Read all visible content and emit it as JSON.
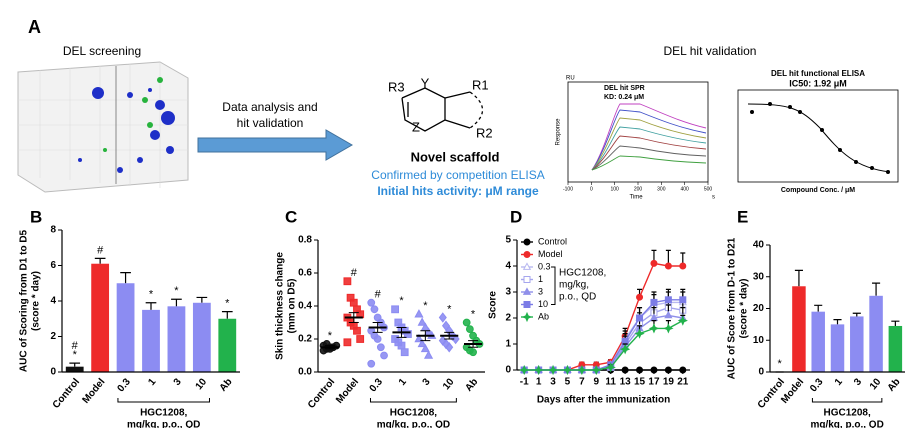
{
  "panel_a": {
    "label": "A",
    "screening_title": "DEL screening",
    "arrow_text": [
      "Data analysis and",
      "hit validation"
    ],
    "atoms": [
      "R3",
      "Y",
      "R1",
      "Z",
      "R2"
    ],
    "scaffold_title": "Novel scaffold",
    "scaffold_lines": [
      "Confirmed by competition ELISA",
      "Initial hits activity: μM range"
    ],
    "validation_title": "DEL hit validation",
    "spr": {
      "title": "DEL hit SPR",
      "kd": "KD: 0.24 μM",
      "unit": "RU",
      "ylabel": "Response",
      "xlabel": "Time",
      "xunit": "s",
      "xlim": [
        -100,
        500
      ],
      "xticks": [
        -100,
        0,
        100,
        200,
        300,
        400,
        500
      ]
    },
    "elisa": {
      "title": "DEL hit functional ELISA",
      "ic50": "IC50: 1.92 μM",
      "xlabel": "Compound Conc. / μM"
    }
  },
  "chart_data": [
    {
      "type": "bar",
      "label": "B",
      "ylabel": [
        "AUC of Scoring from D1 to D5",
        "(score * day)"
      ],
      "categories": [
        "Control",
        "Model",
        "0.3",
        "1",
        "3",
        "10",
        "Ab"
      ],
      "values": [
        0.3,
        6.1,
        5.0,
        3.5,
        3.7,
        3.9,
        3.0
      ],
      "errors": [
        0.2,
        0.3,
        0.6,
        0.4,
        0.4,
        0.3,
        0.4
      ],
      "colors": [
        "#111111",
        "#ee2a2a",
        "#8c8cf2",
        "#8c8cf2",
        "#8c8cf2",
        "#8c8cf2",
        "#22b24c"
      ],
      "annotations": [
        [
          "#",
          "*"
        ],
        [
          "#"
        ],
        [],
        [
          "*"
        ],
        [
          "*"
        ],
        [],
        [
          "*"
        ]
      ],
      "group_label": [
        "HGC1208,",
        "mg/kg, p.o., QD"
      ],
      "ylim": [
        0,
        8
      ],
      "yticks": [
        0,
        2,
        4,
        6,
        8
      ]
    },
    {
      "type": "dot",
      "label": "C",
      "ylabel": [
        "Skin thickness change",
        "(mm on D5)"
      ],
      "categories": [
        "Control",
        "Model",
        "0.3",
        "1",
        "3",
        "10",
        "Ab"
      ],
      "values": [
        0.15,
        0.33,
        0.27,
        0.24,
        0.22,
        0.22,
        0.17
      ],
      "errors": [
        0.01,
        0.03,
        0.03,
        0.03,
        0.03,
        0.02,
        0.02
      ],
      "points": [
        [
          0.13,
          0.14,
          0.15,
          0.15,
          0.16,
          0.16,
          0.17,
          0.14
        ],
        [
          0.55,
          0.45,
          0.42,
          0.38,
          0.35,
          0.33,
          0.3,
          0.28,
          0.25,
          0.2,
          0.18
        ],
        [
          0.42,
          0.38,
          0.33,
          0.3,
          0.27,
          0.25,
          0.22,
          0.2,
          0.15,
          0.1,
          0.05
        ],
        [
          0.38,
          0.3,
          0.27,
          0.25,
          0.23,
          0.2,
          0.18,
          0.16,
          0.12
        ],
        [
          0.35,
          0.3,
          0.27,
          0.24,
          0.22,
          0.2,
          0.17,
          0.14,
          0.1
        ],
        [
          0.33,
          0.28,
          0.25,
          0.22,
          0.2,
          0.19,
          0.17,
          0.15
        ],
        [
          0.3,
          0.26,
          0.22,
          0.19,
          0.17,
          0.15,
          0.13,
          0.12
        ]
      ],
      "colors": [
        "#111111",
        "#ee2a2a",
        "#8c8cf2",
        "#8c8cf2",
        "#8c8cf2",
        "#8c8cf2",
        "#22b24c"
      ],
      "markers": [
        "circle",
        "square",
        "circle",
        "square",
        "triangle",
        "diamond",
        "circle"
      ],
      "annotations": [
        [
          "*"
        ],
        [
          "#"
        ],
        [
          "#"
        ],
        [
          "*"
        ],
        [
          "*"
        ],
        [
          "*"
        ],
        [
          "*"
        ]
      ],
      "group_label": [
        "HGC1208,",
        "mg/kg, p.o., QD"
      ],
      "ylim": [
        0,
        0.8
      ],
      "yticks": [
        {
          "value": 0,
          "label": "0.0"
        },
        {
          "value": 0.2,
          "label": "0.2"
        },
        {
          "value": 0.4,
          "label": "0.4"
        },
        {
          "value": 0.6,
          "label": "0.6"
        },
        {
          "value": 0.8,
          "label": "0.8"
        }
      ]
    },
    {
      "type": "line",
      "label": "D",
      "ylabel": [
        "Score"
      ],
      "xlabel": "Days after the immunization",
      "x": [
        -1,
        1,
        3,
        5,
        7,
        9,
        11,
        13,
        15,
        17,
        19,
        21
      ],
      "series": [
        {
          "name": "Control",
          "color": "#000000",
          "marker": "circle",
          "values": [
            0,
            0,
            0,
            0,
            0,
            0,
            0,
            0,
            0,
            0,
            0,
            0
          ]
        },
        {
          "name": "Model",
          "color": "#ee2a2a",
          "marker": "circle",
          "values": [
            0,
            0,
            0,
            0,
            0.2,
            0.2,
            0.3,
            1.3,
            2.8,
            4.1,
            4.0,
            4.0
          ],
          "errors": [
            0,
            0,
            0,
            0,
            0.1,
            0.1,
            0.1,
            0.3,
            0.3,
            0.5,
            0.6,
            0.5
          ]
        },
        {
          "name": "0.3",
          "color": "#b8b8f0",
          "marker": "triangle-open",
          "values": [
            0,
            0,
            0,
            0,
            0,
            0,
            0.2,
            1.2,
            2.0,
            2.5,
            2.6,
            2.6
          ],
          "errors": [
            0,
            0,
            0,
            0,
            0,
            0,
            0.1,
            0.3,
            0.4,
            0.4,
            0.4,
            0.4
          ]
        },
        {
          "name": "1",
          "color": "#a6a6ee",
          "marker": "square-open",
          "values": [
            0,
            0,
            0,
            0,
            0,
            0,
            0.1,
            1.0,
            1.8,
            2.2,
            2.4,
            2.3
          ],
          "errors": [
            0,
            0,
            0,
            0,
            0,
            0,
            0.1,
            0.3,
            0.4,
            0.4,
            0.4,
            0.4
          ]
        },
        {
          "name": "3",
          "color": "#9090ea",
          "marker": "triangle",
          "values": [
            0,
            0,
            0,
            0,
            0,
            0,
            0.1,
            0.9,
            1.6,
            2.0,
            2.1,
            2.0
          ],
          "errors": [
            0,
            0,
            0,
            0,
            0,
            0,
            0.1,
            0.3,
            0.3,
            0.4,
            0.4,
            0.4
          ]
        },
        {
          "name": "10",
          "color": "#7c7ce6",
          "marker": "square",
          "values": [
            0,
            0,
            0,
            0,
            0,
            0,
            0.2,
            1.1,
            2.0,
            2.6,
            2.7,
            2.7
          ],
          "errors": [
            0,
            0,
            0,
            0,
            0,
            0,
            0.1,
            0.3,
            0.4,
            0.4,
            0.4,
            0.4
          ]
        },
        {
          "name": "Ab",
          "color": "#22b24c",
          "marker": "star",
          "values": [
            0,
            0,
            0,
            0,
            0,
            0,
            0.1,
            0.8,
            1.4,
            1.6,
            1.6,
            1.9
          ],
          "errors": [
            0,
            0,
            0,
            0,
            0,
            0,
            0.1,
            0.2,
            0.3,
            0.3,
            0.3,
            0.2
          ]
        }
      ],
      "legend_group_label": [
        "HGC1208,",
        "mg/kg,",
        "p.o., QD"
      ],
      "xlim": [
        -2,
        22
      ],
      "xticks": [
        -1,
        1,
        3,
        5,
        7,
        9,
        11,
        13,
        15,
        17,
        19,
        21
      ],
      "ylim": [
        0,
        5
      ],
      "yticks": [
        0,
        1,
        2,
        3,
        4,
        5
      ]
    },
    {
      "type": "bar",
      "label": "E",
      "ylabel": [
        "AUC of Score from D-1 to D21",
        "(score * day)"
      ],
      "categories": [
        "Control",
        "Model",
        "0.3",
        "1",
        "3",
        "10",
        "Ab"
      ],
      "values": [
        0,
        27,
        19,
        15,
        17.5,
        24,
        14.5
      ],
      "errors": [
        0,
        5,
        2,
        1.5,
        1,
        4,
        1.5
      ],
      "colors": [
        "#111111",
        "#ee2a2a",
        "#8c8cf2",
        "#8c8cf2",
        "#8c8cf2",
        "#8c8cf2",
        "#22b24c"
      ],
      "annotations": [
        [
          "*"
        ],
        [],
        [],
        [],
        [],
        [],
        []
      ],
      "group_label": [
        "HGC1208,",
        "mg/kg, p.o., QD"
      ],
      "ylim": [
        0,
        40
      ],
      "yticks": [
        0,
        10,
        20,
        30,
        40
      ]
    }
  ]
}
